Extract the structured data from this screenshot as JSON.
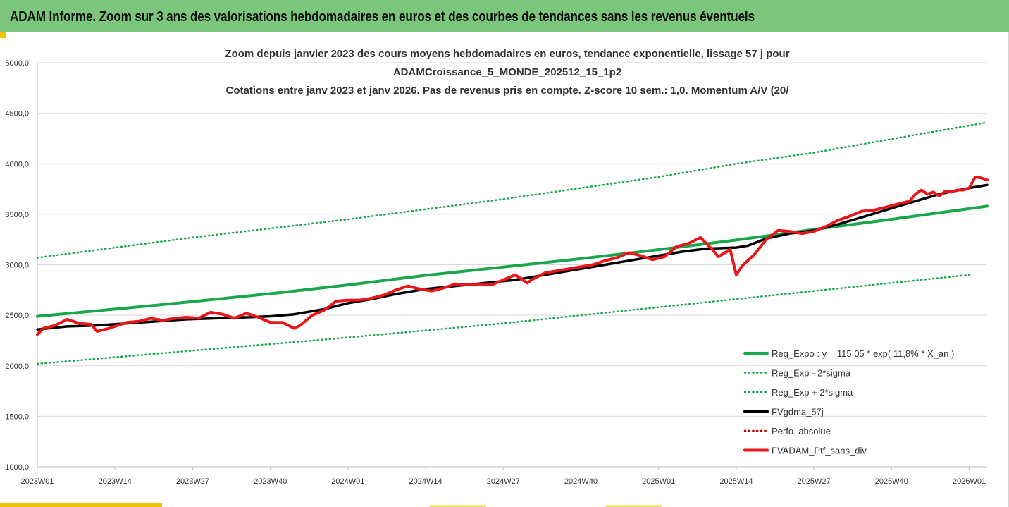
{
  "header": {
    "title": "ADAM Informe. Zoom sur 3 ans des valorisations hebdomadaires en euros et des courbes de tendances sans les revenus éventuels"
  },
  "colors": {
    "green": "#1aa64a",
    "black": "#000000",
    "red": "#e8161b",
    "darkred": "#c00000",
    "grid": "#d9d9d9",
    "header_bg": "#7cc57c"
  },
  "chart_data": {
    "type": "line",
    "title_lines": [
      "Zoom depuis janvier 2023 des cours moyens hebdomadaires  en euros, tendance exponentielle, lissage 57 j pour",
      "ADAMCroissance_5_MONDE_202512_15_1p2",
      "Cotations entre janv 2023 et janv 2026. Pas de revenus pris en compte. Z-score 10 sem.: 1,0. Momentum A/V (20/"
    ],
    "ylim": [
      1000,
      5000
    ],
    "yticks": [
      "1000,0",
      "1500,0",
      "2000,0",
      "2500,0",
      "3000,0",
      "3500,0",
      "4000,0",
      "4500,0",
      "5000,0"
    ],
    "ytick_values": [
      1000,
      1500,
      2000,
      2500,
      3000,
      3500,
      4000,
      4500,
      5000
    ],
    "xlim": [
      0,
      159
    ],
    "xticks": [
      "2023W01",
      "2023W14",
      "2023W27",
      "2023W40",
      "2024W01",
      "2024W14",
      "2024W27",
      "2024W40",
      "2025W01",
      "2025W14",
      "2025W27",
      "2025W40",
      "2026W01"
    ],
    "xtick_weeks": [
      0,
      13,
      26,
      39,
      52,
      65,
      78,
      91,
      104,
      117,
      130,
      143,
      156
    ],
    "legend": [
      {
        "label": "Reg_Expo : y = 115,05 * exp( 11,8% *  X_an )",
        "style": "solid",
        "color": "#1aa64a"
      },
      {
        "label": "Reg_Exp - 2*sigma",
        "style": "dotted",
        "color": "#1aa64a"
      },
      {
        "label": "Reg_Exp + 2*sigma",
        "style": "dotted",
        "color": "#1aa64a"
      },
      {
        "label": "FVgdma_57j",
        "style": "solid",
        "color": "#000000"
      },
      {
        "label": "Perfo. absolue",
        "style": "dotted",
        "color": "#c00000"
      },
      {
        "label": "FVADAM_Ptf_sans_div",
        "style": "solid",
        "color": "#e8161b"
      }
    ],
    "series": [
      {
        "name": "Reg_Expo",
        "color": "#1aa64a",
        "style": "solid",
        "width": 4,
        "x": [
          0,
          20,
          40,
          52,
          65,
          91,
          104,
          117,
          130,
          143,
          159
        ],
        "values": [
          2490,
          2600,
          2720,
          2800,
          2895,
          3060,
          3150,
          3245,
          3350,
          3450,
          3580
        ]
      },
      {
        "name": "Reg_Exp - 2*sigma",
        "color": "#1aa64a",
        "style": "dotted",
        "width": 2.5,
        "x": [
          0,
          26,
          52,
          78,
          104,
          130,
          156
        ],
        "values": [
          2020,
          2150,
          2280,
          2420,
          2580,
          2740,
          2900
        ]
      },
      {
        "name": "Reg_Exp + 2*sigma",
        "color": "#1aa64a",
        "style": "dotted",
        "width": 2.5,
        "x": [
          0,
          26,
          52,
          78,
          104,
          117,
          130,
          159
        ],
        "values": [
          3070,
          3270,
          3450,
          3650,
          3870,
          4000,
          4110,
          4410
        ]
      },
      {
        "name": "FVgdma_57j",
        "color": "#000000",
        "style": "solid",
        "width": 3.5,
        "x": [
          0,
          5,
          10,
          15,
          20,
          25,
          30,
          35,
          39,
          43,
          48,
          52,
          56,
          60,
          65,
          70,
          75,
          80,
          85,
          90,
          95,
          100,
          104,
          108,
          112,
          117,
          119,
          122,
          126,
          130,
          134,
          138,
          143,
          147,
          151,
          156,
          159
        ],
        "values": [
          2360,
          2390,
          2400,
          2420,
          2440,
          2460,
          2470,
          2480,
          2490,
          2510,
          2560,
          2620,
          2660,
          2710,
          2760,
          2790,
          2820,
          2850,
          2900,
          2950,
          3000,
          3050,
          3090,
          3130,
          3160,
          3170,
          3190,
          3260,
          3310,
          3340,
          3400,
          3470,
          3560,
          3630,
          3700,
          3760,
          3790
        ]
      },
      {
        "name": "FVADAM_Ptf_sans_div",
        "color": "#e8161b",
        "style": "solid",
        "width": 4,
        "x": [
          0,
          1,
          3,
          5,
          7,
          9,
          10,
          12,
          14,
          15,
          17,
          19,
          21,
          23,
          25,
          27,
          29,
          31,
          33,
          35,
          37,
          39,
          41,
          43,
          44,
          46,
          48,
          50,
          52,
          54,
          56,
          58,
          60,
          62,
          64,
          66,
          68,
          70,
          72,
          74,
          76,
          78,
          80,
          82,
          83,
          85,
          87,
          89,
          91,
          93,
          95,
          97,
          99,
          101,
          103,
          105,
          107,
          109,
          111,
          113,
          114,
          116,
          117,
          118,
          120,
          122,
          124,
          126,
          128,
          130,
          132,
          134,
          136,
          138,
          140,
          142,
          144,
          146,
          147,
          148,
          149,
          150,
          151,
          152,
          153,
          154,
          155,
          156,
          157,
          158,
          159
        ],
        "values": [
          2310,
          2370,
          2400,
          2460,
          2420,
          2410,
          2340,
          2370,
          2410,
          2430,
          2440,
          2470,
          2450,
          2470,
          2480,
          2470,
          2530,
          2510,
          2470,
          2520,
          2480,
          2430,
          2430,
          2370,
          2400,
          2500,
          2550,
          2640,
          2650,
          2650,
          2670,
          2700,
          2750,
          2790,
          2760,
          2740,
          2770,
          2810,
          2800,
          2810,
          2800,
          2850,
          2900,
          2820,
          2860,
          2920,
          2940,
          2960,
          2980,
          3000,
          3040,
          3070,
          3120,
          3090,
          3050,
          3080,
          3180,
          3210,
          3270,
          3150,
          3080,
          3150,
          2900,
          2990,
          3100,
          3250,
          3340,
          3330,
          3310,
          3330,
          3380,
          3440,
          3480,
          3530,
          3540,
          3570,
          3600,
          3630,
          3700,
          3740,
          3700,
          3720,
          3680,
          3730,
          3720,
          3740,
          3740,
          3760,
          3870,
          3860,
          3840
        ]
      }
    ]
  }
}
